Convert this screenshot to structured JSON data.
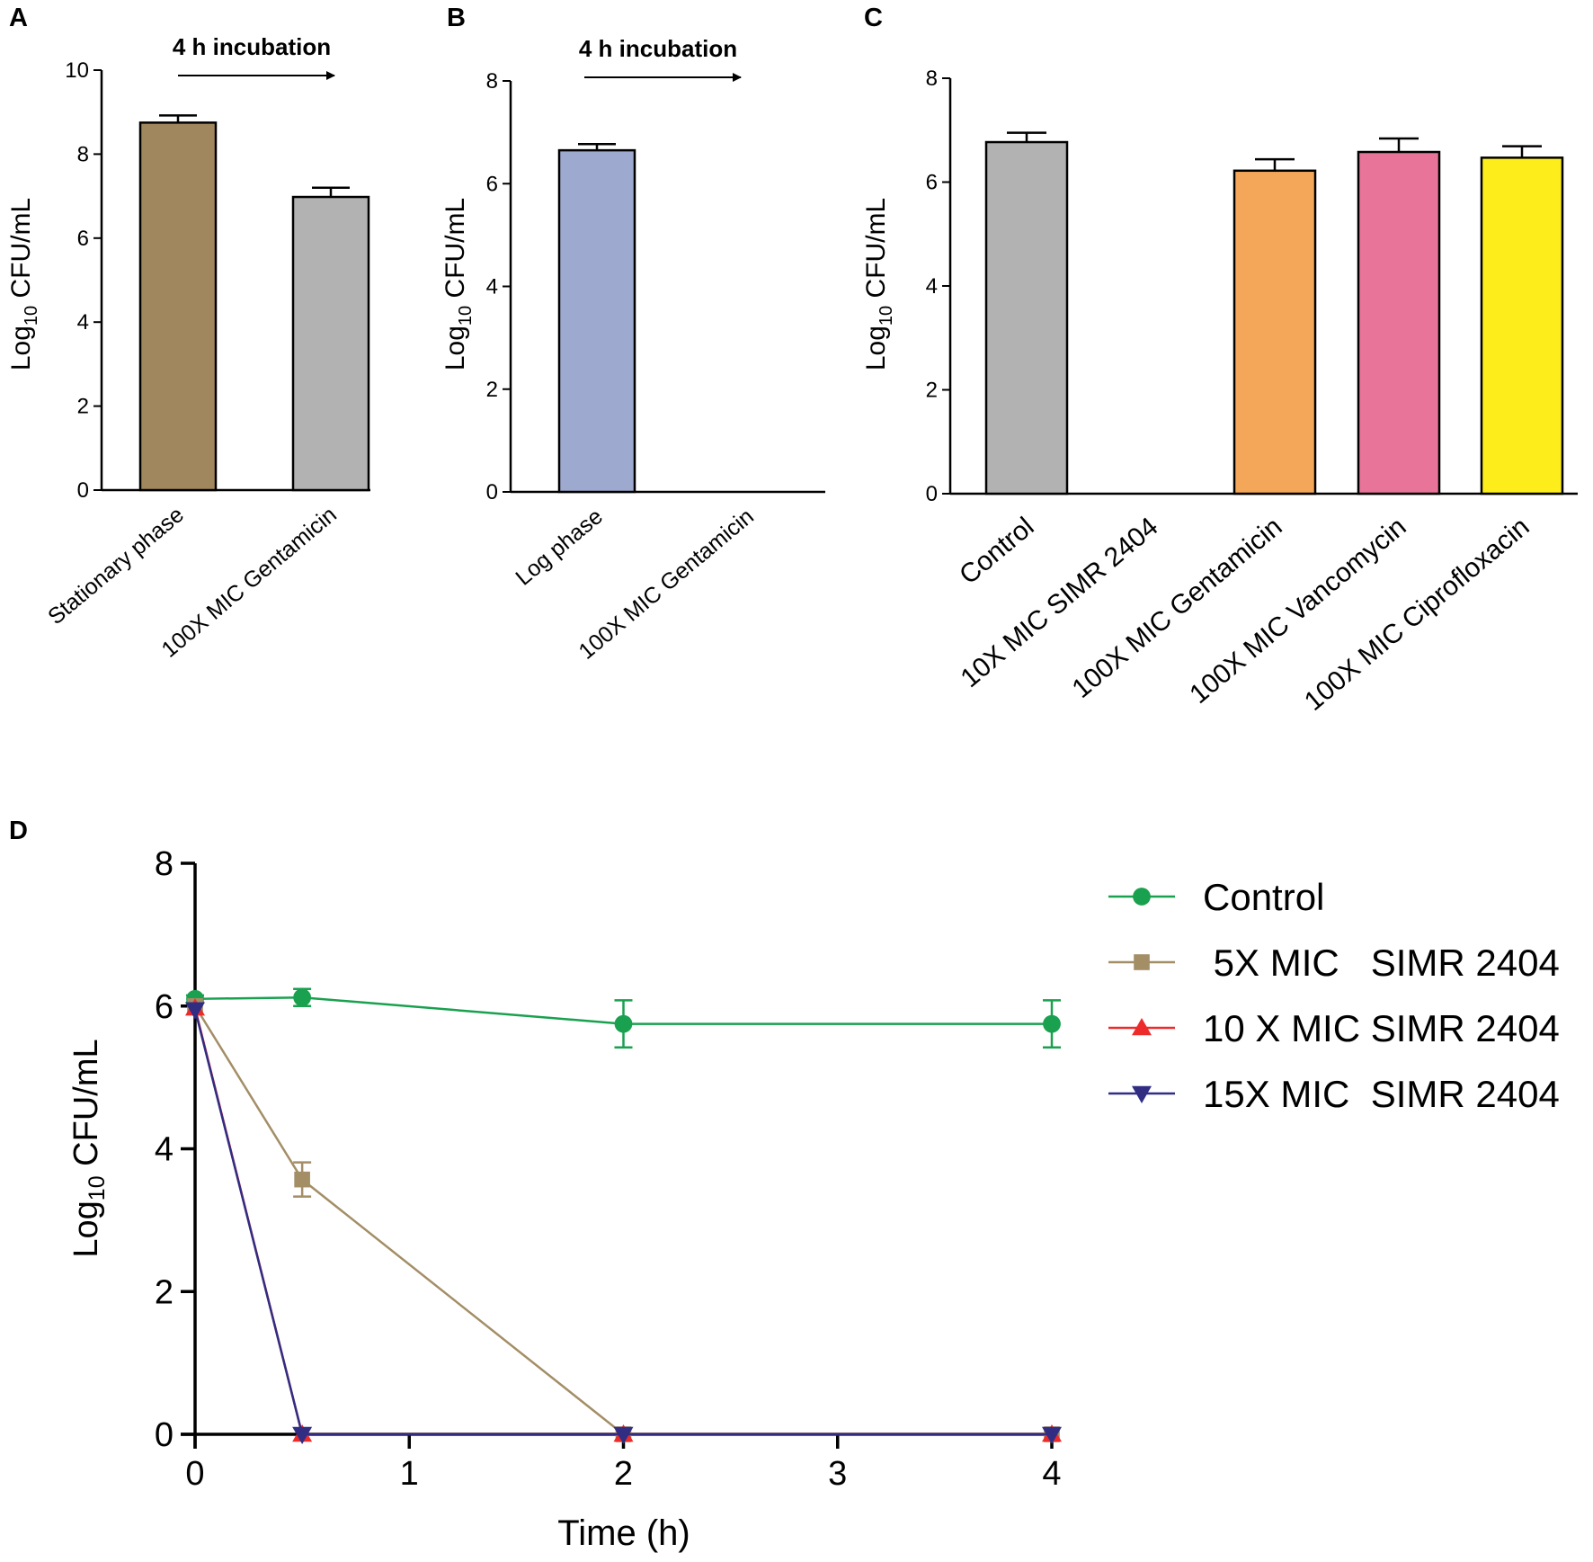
{
  "colors": {
    "stationary": "#A1875D",
    "gray": "#B2B2B2",
    "log": "#9DA9CE",
    "gentamicin": "#F5A759",
    "vancomycin": "#E8749A",
    "ciprofloxacin": "#FDEE1B",
    "control_line": "#19A14F",
    "mic5_line": "#A38E66",
    "mic10_line": "#EE2B2B",
    "mic15_line": "#302D83"
  },
  "chart_data": [
    {
      "panel": "A",
      "type": "bar",
      "annotation": "4 h incubation",
      "ylabel_base": "Log",
      "ylabel_sub": "10",
      "ylabel_rest": " CFU/mL",
      "ylim": [
        0,
        10
      ],
      "yticks": [
        "0",
        "2",
        "4",
        "6",
        "8",
        "10"
      ],
      "categories": [
        "Stationary phase",
        "100X MIC Gentamicin"
      ],
      "values": [
        8.75,
        6.98
      ],
      "errors": [
        0.17,
        0.22
      ]
    },
    {
      "panel": "B",
      "type": "bar",
      "annotation": "4 h incubation",
      "ylabel_base": "Log",
      "ylabel_sub": "10",
      "ylabel_rest": " CFU/mL",
      "ylim": [
        0,
        8
      ],
      "yticks": [
        "0",
        "2",
        "4",
        "6",
        "8"
      ],
      "categories": [
        "Log phase",
        "100X MIC Gentamicin"
      ],
      "values": [
        6.65,
        0
      ],
      "errors": [
        0.12,
        0
      ]
    },
    {
      "panel": "C",
      "type": "bar",
      "ylabel_base": "Log",
      "ylabel_sub": "10",
      "ylabel_rest": " CFU/mL",
      "ylim": [
        0,
        8
      ],
      "yticks": [
        "0",
        "2",
        "4",
        "6",
        "8"
      ],
      "categories": [
        "Control",
        "10X MIC SIMR 2404",
        "100X MIC Gentamicin",
        "100X MIC Vancomycin",
        "100X MIC Ciprofloxacin"
      ],
      "values": [
        6.77,
        0,
        6.22,
        6.58,
        6.47
      ],
      "errors": [
        0.18,
        0,
        0.22,
        0.26,
        0.22
      ]
    },
    {
      "panel": "D",
      "type": "line",
      "xlabel": "Time (h)",
      "ylabel_base": "Log",
      "ylabel_sub": "10",
      "ylabel_rest": " CFU/mL",
      "xlim": [
        0,
        4
      ],
      "ylim": [
        0,
        8
      ],
      "xticks": [
        "0",
        "1",
        "2",
        "3",
        "4"
      ],
      "yticks": [
        "0",
        "2",
        "4",
        "6",
        "8"
      ],
      "series": [
        {
          "name": "Control",
          "marker": "circle",
          "x": [
            0,
            0.5,
            2,
            4
          ],
          "values": [
            6.1,
            6.12,
            5.75,
            5.75
          ],
          "errors": [
            0.05,
            0.12,
            0.33,
            0.33
          ]
        },
        {
          "name": " 5X MIC   SIMR 2404",
          "marker": "square",
          "x": [
            0,
            0.5,
            2,
            4
          ],
          "values": [
            6.0,
            3.57,
            0,
            0
          ],
          "errors": [
            0,
            0.24,
            0,
            0
          ]
        },
        {
          "name": "10 X MIC SIMR 2404",
          "marker": "triangle-up",
          "x": [
            0,
            0.5,
            2,
            4
          ],
          "values": [
            5.97,
            0,
            0,
            0
          ],
          "errors": [
            0,
            0,
            0,
            0
          ]
        },
        {
          "name": "15X MIC  SIMR 2404",
          "marker": "triangle-down",
          "x": [
            0,
            0.5,
            2,
            4
          ],
          "values": [
            5.95,
            0,
            0,
            0
          ],
          "errors": [
            0,
            0,
            0,
            0
          ]
        }
      ]
    }
  ]
}
